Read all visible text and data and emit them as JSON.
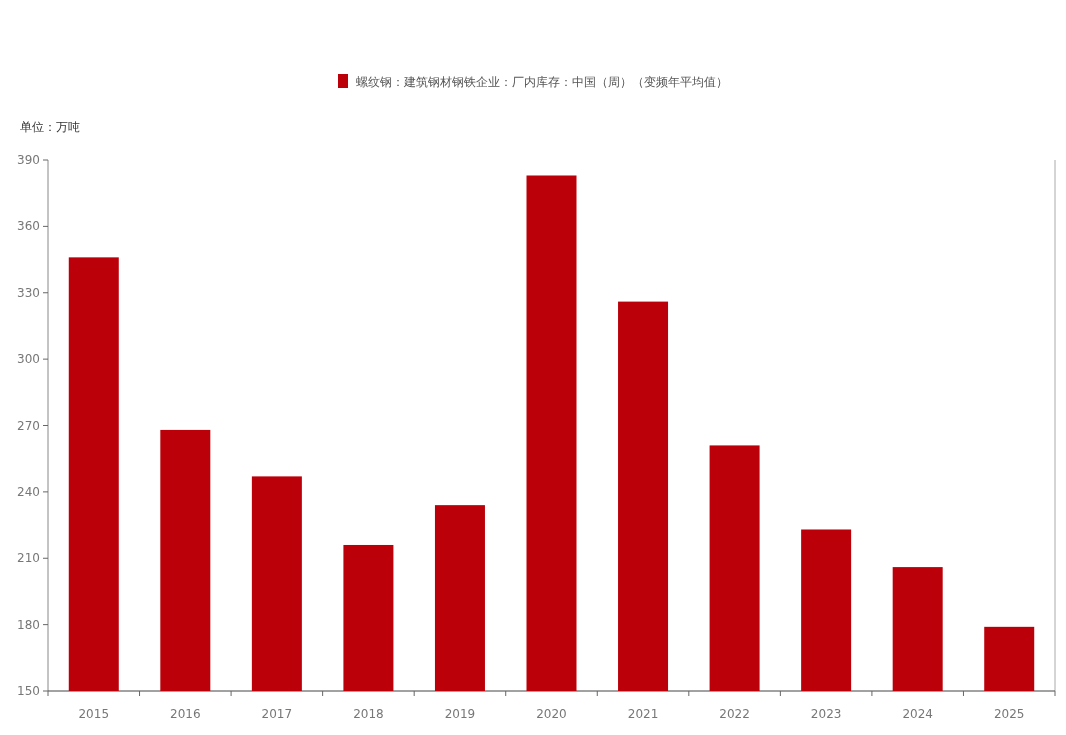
{
  "chart_data": {
    "type": "bar",
    "ylabel": "单位：万吨",
    "categories": [
      "2015",
      "2016",
      "2017",
      "2018",
      "2019",
      "2020",
      "2021",
      "2022",
      "2023",
      "2024",
      "2025"
    ],
    "series": [
      {
        "name": "螺纹钢：建筑钢材钢铁企业：厂内库存：中国（周）（变频年平均值）",
        "color": "#bb0009",
        "values": [
          346,
          268,
          247,
          216,
          234,
          383,
          326,
          261,
          223,
          206,
          179
        ]
      }
    ],
    "ylim": [
      150,
      390
    ],
    "yticks": [
      150,
      180,
      210,
      240,
      270,
      300,
      330,
      360,
      390
    ],
    "legend": "top"
  }
}
